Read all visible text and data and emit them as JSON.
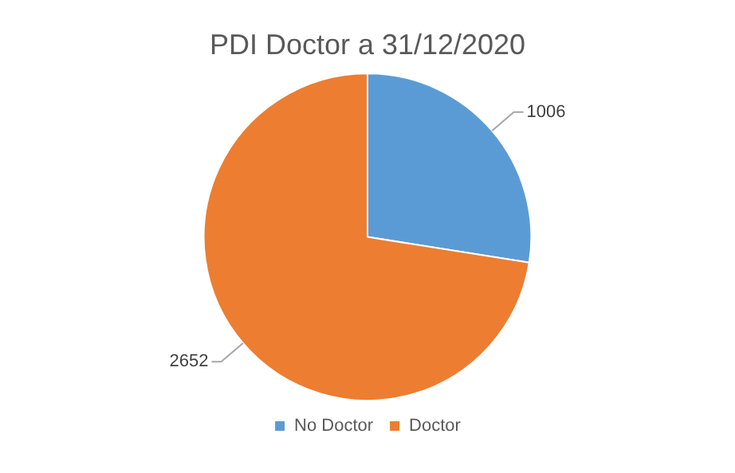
{
  "chart_data": {
    "type": "pie",
    "title": "PDI Doctor a 31/12/2020",
    "categories": [
      "No Doctor",
      "Doctor"
    ],
    "values": [
      1006,
      2652
    ],
    "colors": [
      "#5b9bd5",
      "#ed7d31"
    ],
    "data_labels": true,
    "legend": "bottom"
  }
}
